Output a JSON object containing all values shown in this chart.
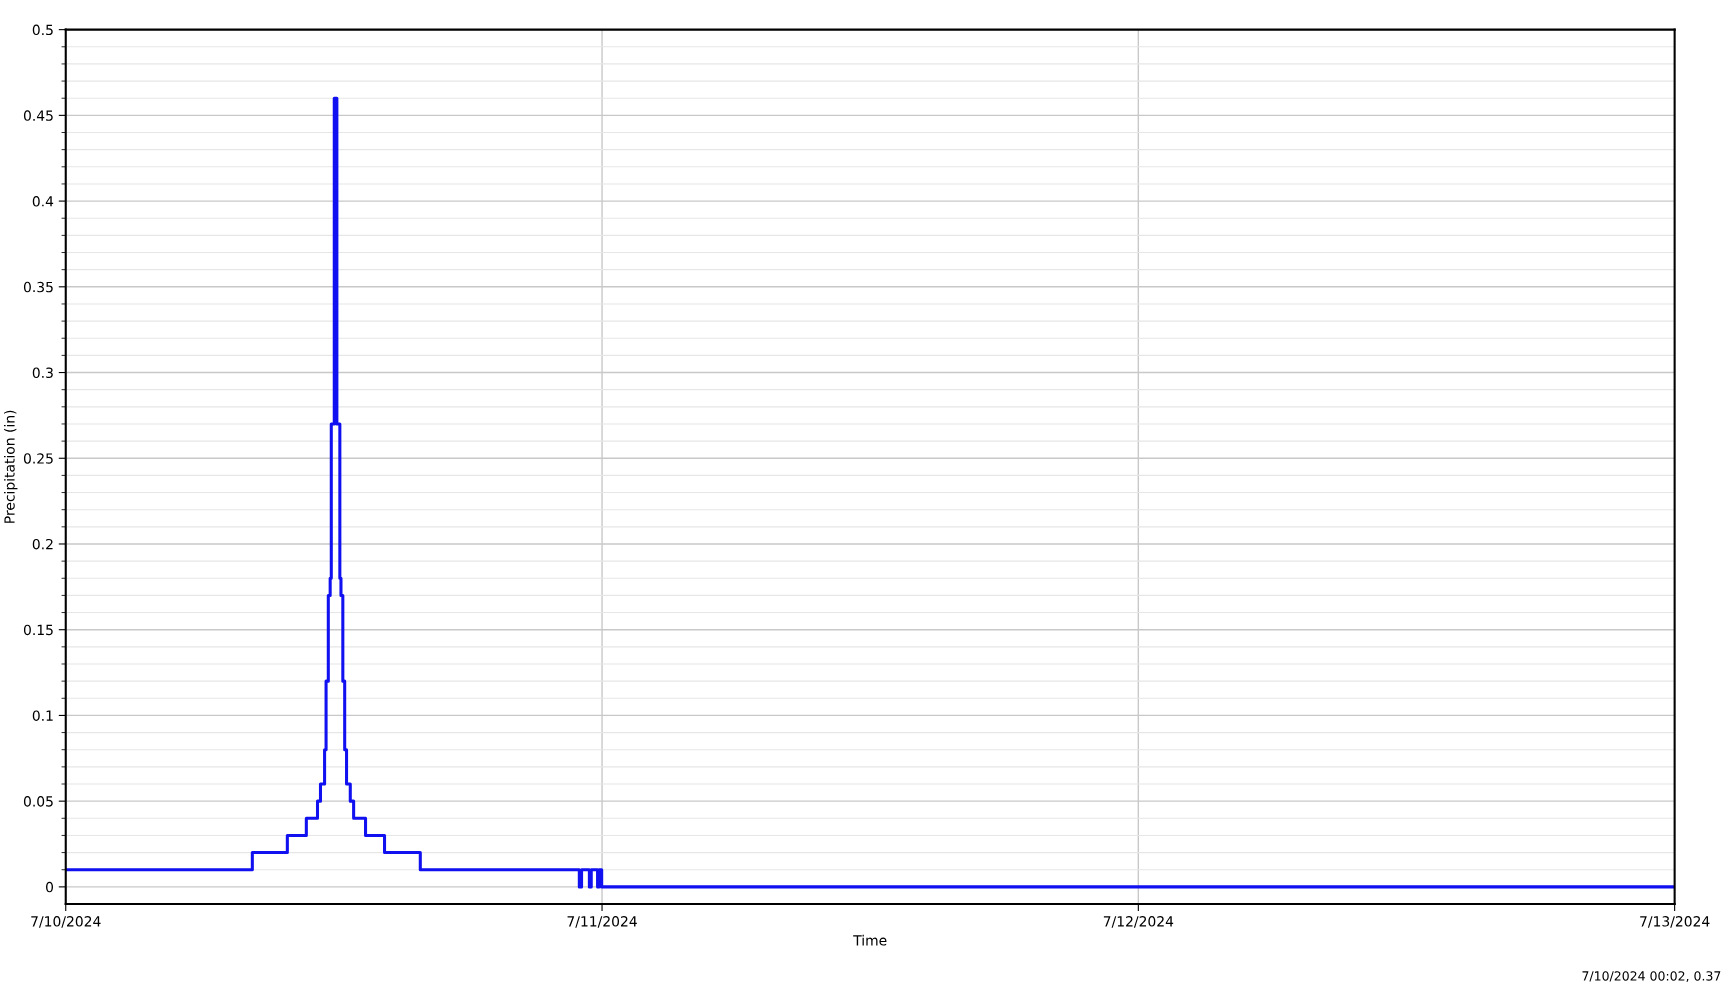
{
  "chart_data": {
    "type": "step",
    "xlabel": "Time",
    "ylabel": "Precipitation (in)",
    "x": [
      "2024-07-10",
      "2024-07-10T08:21",
      "2024-07-10T09:55",
      "2024-07-10T10:46",
      "2024-07-10T11:16",
      "2024-07-10T11:24",
      "2024-07-10T11:35",
      "2024-07-10T11:39",
      "2024-07-10T11:45",
      "2024-07-10T11:50",
      "2024-07-10T11:53",
      "2024-07-10T12:01",
      "2024-07-10T12:08",
      "2024-07-10T12:16",
      "2024-07-10T12:19",
      "2024-07-10T12:24",
      "2024-07-10T12:29",
      "2024-07-10T12:34",
      "2024-07-10T12:44",
      "2024-07-10T12:53",
      "2024-07-10T13:25",
      "2024-07-10T14:16",
      "2024-07-10T15:52",
      "2024-07-10T22:59",
      "2024-07-10T23:05",
      "2024-07-10T23:26",
      "2024-07-10T23:31",
      "2024-07-10T23:48",
      "2024-07-10T23:52",
      "2024-07-10T23:59",
      "2024-07-13"
    ],
    "series": [
      {
        "color": "#1010f0",
        "values": [
          0.01,
          0.02,
          0.03,
          0.04,
          0.05,
          0.06,
          0.08,
          0.12,
          0.17,
          0.18,
          0.27,
          0.46,
          0.27,
          0.18,
          0.17,
          0.12,
          0.08,
          0.06,
          0.05,
          0.04,
          0.03,
          0.02,
          0.01,
          0,
          0.01,
          0,
          0.01,
          0,
          0.01,
          0,
          0
        ]
      }
    ],
    "xlim": [
      "2024-07-10",
      "2024-07-13"
    ],
    "xticks": [
      {
        "value": "2024-07-10",
        "label": "7/10/2024"
      },
      {
        "value": "2024-07-11",
        "label": "7/11/2024"
      },
      {
        "value": "2024-07-12",
        "label": "7/12/2024"
      },
      {
        "value": "2024-07-13",
        "label": "7/13/2024"
      }
    ],
    "ylim": [
      -0.01,
      0.5
    ],
    "yticks": [
      0,
      0.05,
      0.1,
      0.15,
      0.2,
      0.25,
      0.3,
      0.35,
      0.4,
      0.45,
      0.5
    ],
    "grid": true,
    "line_style": "solid",
    "marker": "none",
    "annotations": [
      "7/10/2024 00:02, 0.37"
    ]
  }
}
